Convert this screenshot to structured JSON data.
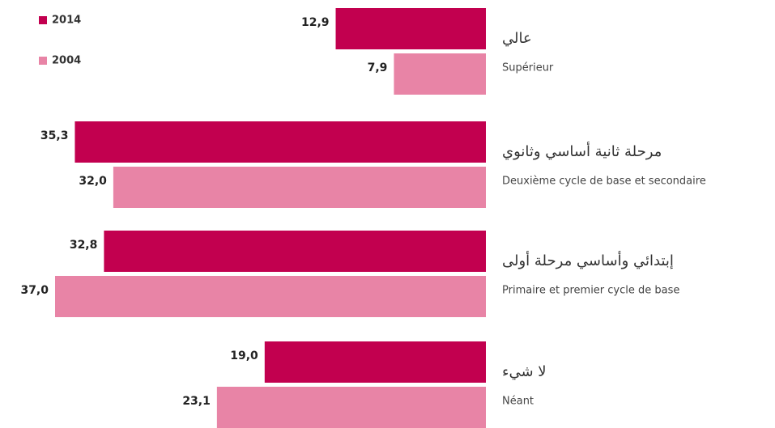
{
  "chart_data": {
    "type": "bar",
    "orientation": "horizontal",
    "categories": [
      "Supérieur",
      "Deuxième cycle de base et secondaire",
      "Primaire et premier cycle de base",
      "Néant"
    ],
    "categories_ar": [
      "عالي",
      "مرحلة ثانية أساسي وثانوي",
      "إبتدائي وأساسي مرحلة أولى",
      "لا شيء"
    ],
    "series": [
      {
        "name": "2014",
        "color": "#c2004f",
        "values": [
          12.9,
          35.3,
          32.8,
          19.0
        ],
        "value_labels": [
          "12,9",
          "35,3",
          "32,8",
          "19,0"
        ]
      },
      {
        "name": "2004",
        "color": "#e884a6",
        "values": [
          7.9,
          32.0,
          37.0,
          23.1
        ],
        "value_labels": [
          "7,9",
          "32,0",
          "37,0",
          "23,1"
        ]
      }
    ],
    "legend": "top-left"
  }
}
